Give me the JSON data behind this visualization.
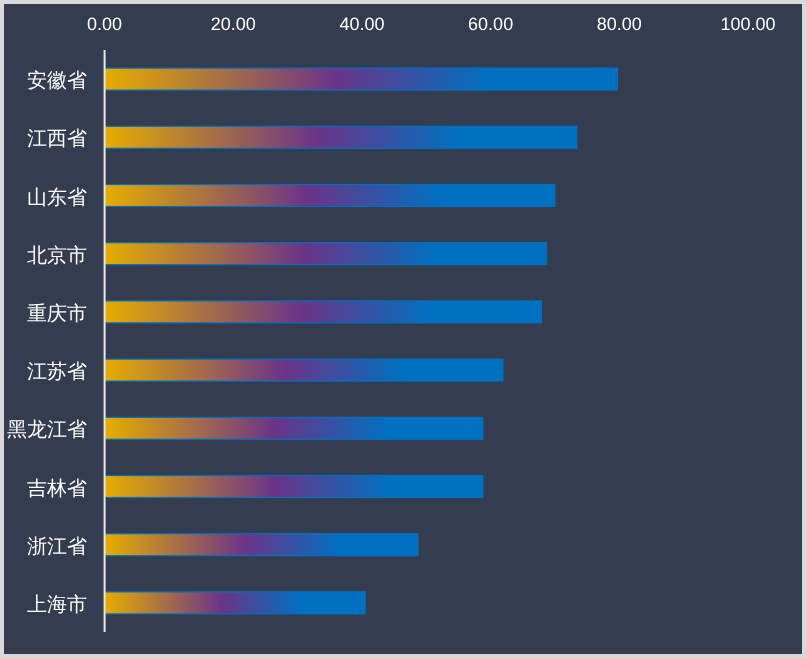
{
  "chart_data": {
    "type": "bar",
    "orientation": "horizontal",
    "categories": [
      "安徽省",
      "江西省",
      "山东省",
      "北京市",
      "重庆市",
      "江苏省",
      "黑龙江省",
      "吉林省",
      "浙江省",
      "上海市"
    ],
    "series": [
      {
        "color": "#0070c0",
        "values": [
          79.7,
          73.4,
          70.0,
          68.7,
          67.9,
          61.9,
          58.8,
          58.8,
          48.7,
          40.5
        ]
      }
    ],
    "xlim": [
      0,
      100
    ],
    "xticks": [
      {
        "value": 0,
        "label": "0.00"
      },
      {
        "value": 20,
        "label": "20.00"
      },
      {
        "value": 40,
        "label": "40.00"
      },
      {
        "value": 60,
        "label": "60.00"
      },
      {
        "value": 80,
        "label": "80.00"
      },
      {
        "value": 100,
        "label": "100.00"
      }
    ],
    "grid": false
  }
}
